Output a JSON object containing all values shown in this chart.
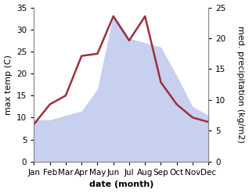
{
  "months": [
    "Jan",
    "Feb",
    "Mar",
    "Apr",
    "May",
    "Jun",
    "Jul",
    "Aug",
    "Sep",
    "Oct",
    "Nov",
    "Dec"
  ],
  "temperature": [
    8.5,
    13.0,
    15.0,
    24.0,
    24.5,
    33.0,
    27.5,
    33.0,
    18.0,
    13.0,
    10.0,
    9.0
  ],
  "precipitation": [
    9.5,
    9.5,
    10.5,
    11.5,
    16.5,
    33.5,
    28.0,
    27.0,
    26.0,
    19.5,
    12.5,
    10.5
  ],
  "temp_color": "#9b3040",
  "precip_fill_color": "#c8d0f0",
  "precip_edge_color": "#a0a8d8",
  "ylabel_left": "max temp (C)",
  "ylabel_right": "med. precipitation (kg/m2)",
  "xlabel": "date (month)",
  "ylim_left": [
    0,
    35
  ],
  "ylim_right": [
    0,
    25
  ],
  "yticks_left": [
    0,
    5,
    10,
    15,
    20,
    25,
    30,
    35
  ],
  "yticks_right": [
    0,
    5,
    10,
    15,
    20,
    25
  ],
  "bg_color": "#ffffff",
  "label_fontsize": 8,
  "tick_fontsize": 7.5
}
